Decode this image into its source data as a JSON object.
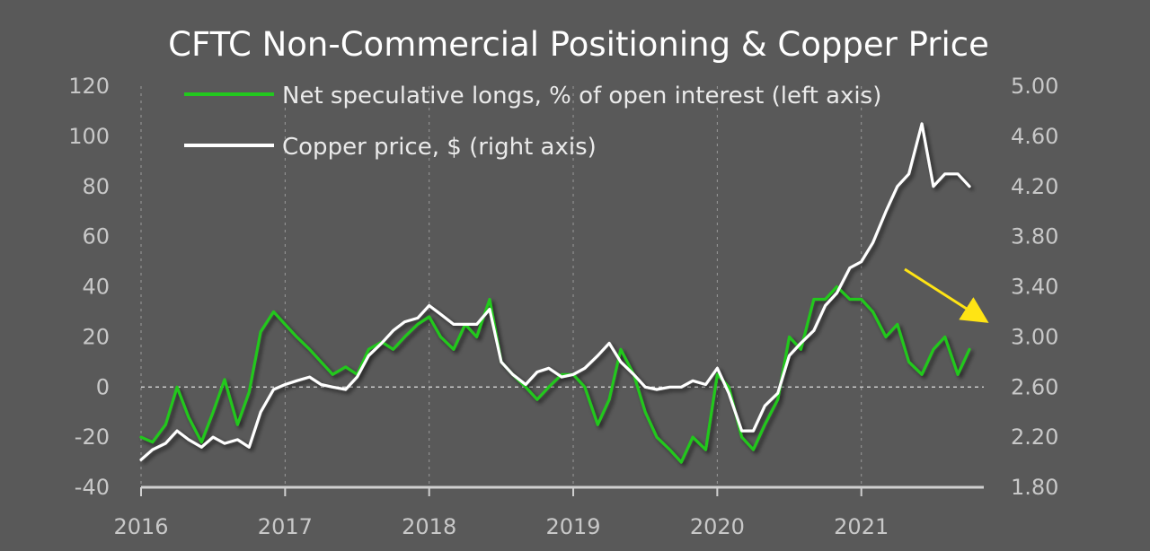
{
  "chart_data": {
    "type": "line",
    "title": "CFTC Non-Commercial Positioning & Copper Price",
    "x_axis": {
      "ticks": [
        "2016",
        "2017",
        "2018",
        "2019",
        "2020",
        "2021"
      ],
      "range": [
        2016.0,
        2021.85
      ]
    },
    "y_left": {
      "ticks": [
        "120",
        "100",
        "80",
        "60",
        "40",
        "20",
        "0",
        "-20",
        "-40"
      ],
      "range": [
        -40,
        120
      ]
    },
    "y_right": {
      "ticks": [
        "5.00",
        "4.60",
        "4.20",
        "3.80",
        "3.40",
        "3.00",
        "2.60",
        "2.20",
        "1.80"
      ],
      "range": [
        1.8,
        5.0
      ]
    },
    "grid": "dashed vertical lines at year ticks, dashed zero line",
    "legend_position": "top-center",
    "series": [
      {
        "name": "Net speculative longs, % of open interest (left axis)",
        "axis": "left",
        "color": "#22c81e",
        "x": [
          2016.0,
          2016.08,
          2016.17,
          2016.25,
          2016.33,
          2016.42,
          2016.5,
          2016.58,
          2016.67,
          2016.75,
          2016.83,
          2016.92,
          2017.0,
          2017.08,
          2017.17,
          2017.25,
          2017.33,
          2017.42,
          2017.5,
          2017.58,
          2017.67,
          2017.75,
          2017.83,
          2017.92,
          2018.0,
          2018.08,
          2018.17,
          2018.25,
          2018.33,
          2018.42,
          2018.5,
          2018.58,
          2018.67,
          2018.75,
          2018.83,
          2018.92,
          2019.0,
          2019.08,
          2019.17,
          2019.25,
          2019.33,
          2019.42,
          2019.5,
          2019.58,
          2019.67,
          2019.75,
          2019.83,
          2019.92,
          2020.0,
          2020.08,
          2020.17,
          2020.25,
          2020.33,
          2020.42,
          2020.5,
          2020.58,
          2020.67,
          2020.75,
          2020.83,
          2020.92,
          2021.0,
          2021.08,
          2021.17,
          2021.25,
          2021.33,
          2021.42,
          2021.5,
          2021.58,
          2021.67,
          2021.75
        ],
        "values": [
          -20,
          -22,
          -15,
          0,
          -12,
          -22,
          -10,
          3,
          -15,
          -2,
          22,
          30,
          25,
          20,
          15,
          10,
          5,
          8,
          5,
          15,
          18,
          15,
          20,
          25,
          28,
          20,
          15,
          25,
          20,
          35,
          10,
          5,
          0,
          -5,
          0,
          5,
          5,
          0,
          -15,
          -5,
          15,
          5,
          -10,
          -20,
          -25,
          -30,
          -20,
          -25,
          5,
          0,
          -20,
          -25,
          -15,
          -5,
          20,
          15,
          35,
          35,
          40,
          35,
          35,
          30,
          20,
          25,
          10,
          5,
          15,
          20,
          5,
          15
        ]
      },
      {
        "name": "Copper price, $ (right axis)",
        "axis": "right",
        "color": "#ffffff",
        "x": [
          2016.0,
          2016.08,
          2016.17,
          2016.25,
          2016.33,
          2016.42,
          2016.5,
          2016.58,
          2016.67,
          2016.75,
          2016.83,
          2016.92,
          2017.0,
          2017.08,
          2017.17,
          2017.25,
          2017.33,
          2017.42,
          2017.5,
          2017.58,
          2017.67,
          2017.75,
          2017.83,
          2017.92,
          2018.0,
          2018.08,
          2018.17,
          2018.25,
          2018.33,
          2018.42,
          2018.5,
          2018.58,
          2018.67,
          2018.75,
          2018.83,
          2018.92,
          2019.0,
          2019.08,
          2019.17,
          2019.25,
          2019.33,
          2019.42,
          2019.5,
          2019.58,
          2019.67,
          2019.75,
          2019.83,
          2019.92,
          2020.0,
          2020.08,
          2020.17,
          2020.25,
          2020.33,
          2020.42,
          2020.5,
          2020.58,
          2020.67,
          2020.75,
          2020.83,
          2020.92,
          2021.0,
          2021.08,
          2021.17,
          2021.25,
          2021.33,
          2021.42,
          2021.5,
          2021.58,
          2021.67,
          2021.75
        ],
        "values": [
          2.02,
          2.1,
          2.15,
          2.25,
          2.18,
          2.12,
          2.2,
          2.15,
          2.18,
          2.12,
          2.4,
          2.58,
          2.62,
          2.65,
          2.68,
          2.62,
          2.6,
          2.58,
          2.68,
          2.85,
          2.95,
          3.05,
          3.12,
          3.15,
          3.25,
          3.18,
          3.1,
          3.1,
          3.1,
          3.22,
          2.8,
          2.7,
          2.62,
          2.72,
          2.75,
          2.68,
          2.7,
          2.75,
          2.85,
          2.95,
          2.8,
          2.7,
          2.6,
          2.58,
          2.6,
          2.6,
          2.65,
          2.62,
          2.75,
          2.55,
          2.25,
          2.25,
          2.45,
          2.55,
          2.85,
          2.95,
          3.05,
          3.25,
          3.35,
          3.55,
          3.6,
          3.75,
          4.0,
          4.2,
          4.3,
          4.7,
          4.2,
          4.3,
          4.3,
          4.2
        ]
      }
    ],
    "annotation": {
      "type": "arrow",
      "color": "#ffe414"
    }
  }
}
